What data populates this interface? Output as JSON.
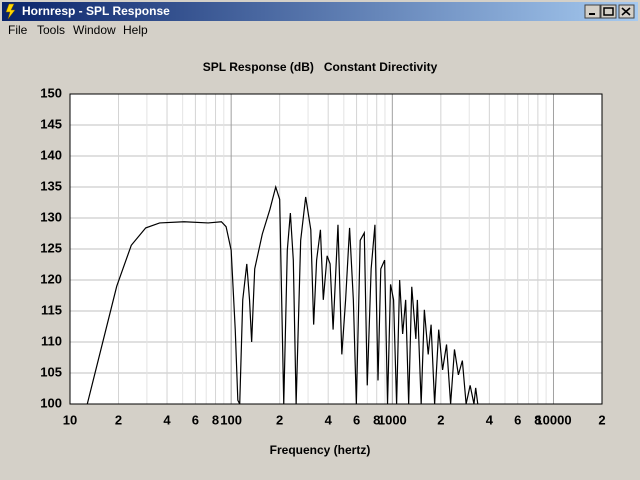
{
  "window": {
    "title": "Hornresp - SPL Response",
    "menu": [
      "File",
      "Tools",
      "Window",
      "Help"
    ]
  },
  "chart_data": {
    "type": "line",
    "title": "SPL Response (dB)   Constant Directivity",
    "x_label": "Frequency (hertz)",
    "xscale": "log",
    "grid": true,
    "color": "#000000",
    "xlim": [
      10,
      20000
    ],
    "ylim": [
      100,
      150
    ],
    "yticks": [
      100,
      105,
      110,
      115,
      120,
      125,
      130,
      135,
      140,
      145,
      150
    ],
    "xticks": [
      10,
      {
        "value": 20,
        "label": "2"
      },
      {
        "value": 40,
        "label": "4"
      },
      {
        "value": 60,
        "label": "6"
      },
      {
        "value": 80,
        "label": "8"
      },
      100,
      {
        "value": 200,
        "label": "2"
      },
      {
        "value": 400,
        "label": "4"
      },
      {
        "value": 600,
        "label": "6"
      },
      {
        "value": 800,
        "label": "8"
      },
      1000,
      {
        "value": 2000,
        "label": "2"
      },
      {
        "value": 4000,
        "label": "4"
      },
      {
        "value": 6000,
        "label": "6"
      },
      {
        "value": 8000,
        "label": "8"
      },
      10000,
      {
        "value": 20000,
        "label": "2"
      }
    ],
    "x_minor_ticks": [
      30,
      50,
      70,
      90,
      300,
      500,
      700,
      900,
      3000,
      5000,
      7000,
      9000
    ],
    "x": [
      12.8,
      19.5,
      24,
      29.5,
      36,
      51,
      72,
      87,
      93,
      100,
      106,
      110,
      113,
      118,
      125,
      130,
      134,
      140,
      156,
      174,
      189,
      200,
      212,
      223,
      233,
      243,
      253,
      270,
      290,
      312,
      325,
      339,
      358,
      373,
      394,
      411,
      429,
      460,
      486,
      513,
      543,
      573,
      598,
      632,
      670,
      699,
      739,
      780,
      815,
      848,
      896,
      934,
      975,
      1018,
      1063,
      1110,
      1159,
      1210,
      1263,
      1320,
      1400,
      1430,
      1510,
      1580,
      1670,
      1740,
      1830,
      1940,
      2050,
      2170,
      2300,
      2430,
      2570,
      2720,
      2870,
      3040,
      3210,
      3290,
      3390
    ],
    "values": [
      100,
      119,
      125.6,
      128.4,
      129.2,
      129.4,
      129.2,
      129.4,
      128.6,
      124.8,
      112,
      100.6,
      100,
      116.8,
      122.6,
      116.8,
      110,
      121.8,
      127.4,
      131.4,
      135,
      133,
      100,
      124.8,
      130.8,
      123.2,
      100,
      126.4,
      133.4,
      128.1,
      112.8,
      123.2,
      128.1,
      116.8,
      123.9,
      122.6,
      112,
      128.9,
      108,
      116.8,
      128.4,
      116.8,
      100,
      126.4,
      127.6,
      103,
      121.8,
      128.9,
      103.8,
      121.8,
      123.2,
      100,
      119.3,
      116.8,
      100,
      120,
      111.3,
      116.8,
      100,
      118.9,
      110.5,
      116.8,
      100,
      115.2,
      108,
      112.8,
      100,
      112,
      105.5,
      109.6,
      100,
      108.8,
      104.7,
      107,
      100,
      103,
      100,
      102.6,
      100
    ]
  }
}
